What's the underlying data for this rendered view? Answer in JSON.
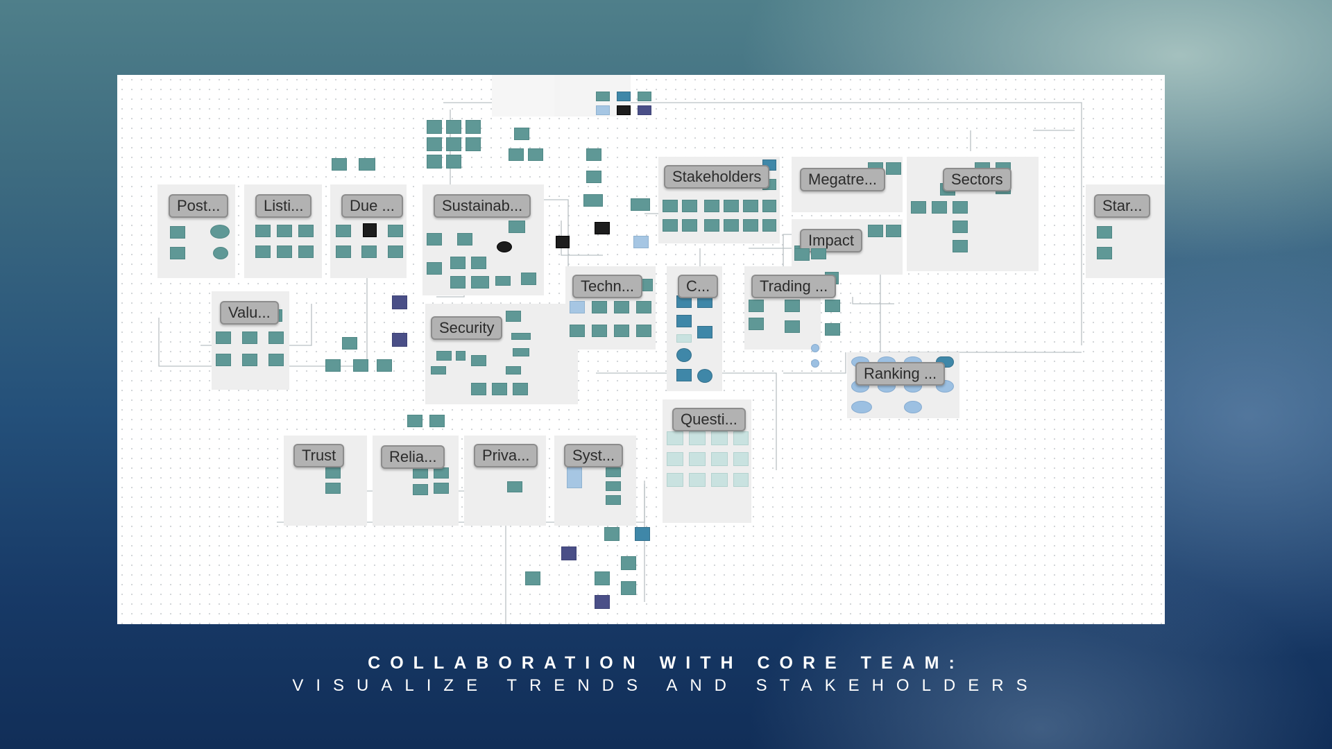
{
  "board": {
    "groups": [
      {
        "id": "posts",
        "label": "Post..."
      },
      {
        "id": "listings",
        "label": "Listi..."
      },
      {
        "id": "due",
        "label": "Due ..."
      },
      {
        "id": "sustainability",
        "label": "Sustainab..."
      },
      {
        "id": "stakeholders",
        "label": "Stakeholders"
      },
      {
        "id": "megatrends",
        "label": "Megatre..."
      },
      {
        "id": "sectors",
        "label": "Sectors"
      },
      {
        "id": "startups",
        "label": "Star..."
      },
      {
        "id": "impact",
        "label": "Impact"
      },
      {
        "id": "values",
        "label": "Valu..."
      },
      {
        "id": "security",
        "label": "Security"
      },
      {
        "id": "technology",
        "label": "Techn..."
      },
      {
        "id": "c",
        "label": "C..."
      },
      {
        "id": "trading",
        "label": "Trading ..."
      },
      {
        "id": "ranking",
        "label": "Ranking ..."
      },
      {
        "id": "questions",
        "label": "Questi..."
      },
      {
        "id": "trust",
        "label": "Trust"
      },
      {
        "id": "reliability",
        "label": "Relia..."
      },
      {
        "id": "privacy",
        "label": "Priva..."
      },
      {
        "id": "systems",
        "label": "Syst..."
      }
    ]
  },
  "caption": {
    "line1": "COLLABORATION WITH CORE TEAM:",
    "line2": "VISUALIZE TRENDS AND STAKEHOLDERS"
  },
  "colors": {
    "tile": "#5f9896",
    "label": "#b2b2b2",
    "group_bg": "#eeeeee",
    "navy_tile": "#4a4f87",
    "dark_tile": "#1d1d1d"
  }
}
